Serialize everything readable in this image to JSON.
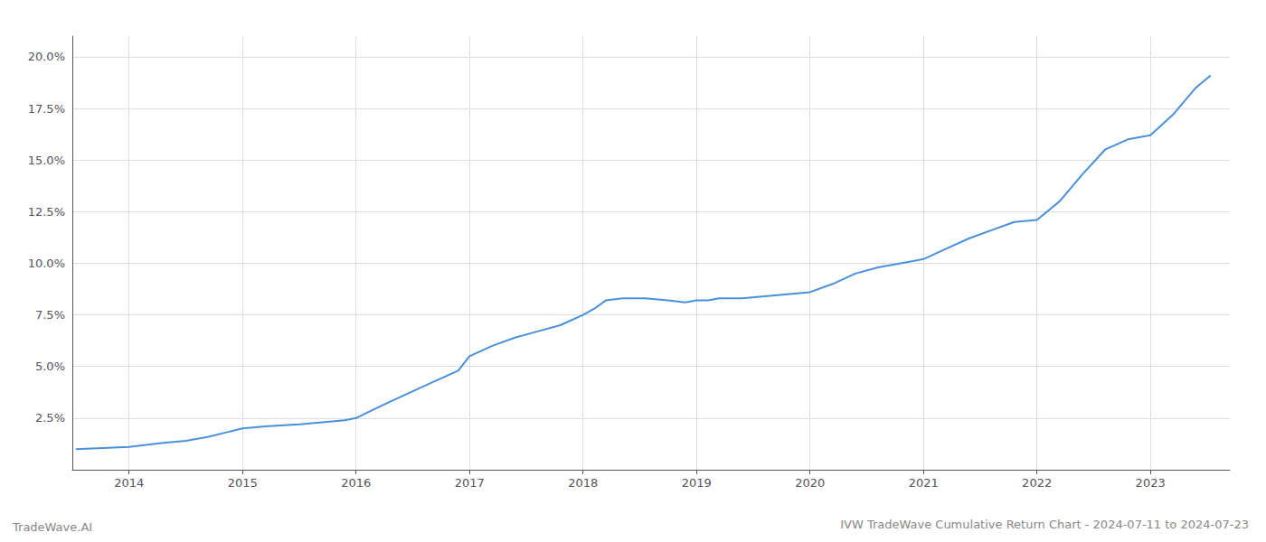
{
  "chart_data": {
    "type": "line",
    "title": "IVW TradeWave Cumulative Return Chart - 2024-07-11 to 2024-07-23",
    "annotations": [
      "TradeWave.AI"
    ],
    "color": "#4a90d9",
    "grid": true,
    "x": [
      2013.53,
      2014.0,
      2014.15,
      2014.3,
      2014.5,
      2014.7,
      2014.85,
      2015.0,
      2015.2,
      2015.5,
      2015.7,
      2015.9,
      2016.0,
      2016.15,
      2016.3,
      2016.5,
      2016.7,
      2016.9,
      2017.0,
      2017.2,
      2017.4,
      2017.6,
      2017.8,
      2018.0,
      2018.1,
      2018.2,
      2018.35,
      2018.55,
      2018.75,
      2018.9,
      2019.0,
      2019.1,
      2019.2,
      2019.4,
      2019.6,
      2019.8,
      2020.0,
      2020.2,
      2020.4,
      2020.6,
      2020.8,
      2021.0,
      2021.2,
      2021.4,
      2021.6,
      2021.8,
      2022.0,
      2022.2,
      2022.4,
      2022.6,
      2022.8,
      2023.0,
      2023.2,
      2023.4,
      2023.53
    ],
    "values": [
      0.01,
      0.011,
      0.012,
      0.013,
      0.014,
      0.016,
      0.018,
      0.02,
      0.021,
      0.022,
      0.023,
      0.024,
      0.025,
      0.029,
      0.033,
      0.038,
      0.043,
      0.048,
      0.055,
      0.06,
      0.064,
      0.067,
      0.07,
      0.075,
      0.078,
      0.082,
      0.083,
      0.083,
      0.082,
      0.081,
      0.082,
      0.082,
      0.083,
      0.083,
      0.084,
      0.085,
      0.086,
      0.09,
      0.095,
      0.098,
      0.1,
      0.102,
      0.107,
      0.112,
      0.116,
      0.12,
      0.121,
      0.13,
      0.143,
      0.155,
      0.16,
      0.162,
      0.172,
      0.185,
      0.191
    ],
    "xlim": [
      2013.5,
      2023.7
    ],
    "xticks": [
      2014,
      2015,
      2016,
      2017,
      2018,
      2019,
      2020,
      2021,
      2022,
      2023
    ],
    "ylim": [
      0.0,
      0.21
    ],
    "yticks": [
      {
        "value": 0.025,
        "label": "2.5%"
      },
      {
        "value": 0.05,
        "label": "5.0%"
      },
      {
        "value": 0.075,
        "label": "7.5%"
      },
      {
        "value": 0.1,
        "label": "10.0%"
      },
      {
        "value": 0.125,
        "label": "12.5%"
      },
      {
        "value": 0.15,
        "label": "15.0%"
      },
      {
        "value": 0.175,
        "label": "17.5%"
      },
      {
        "value": 0.2,
        "label": "20.0%"
      }
    ]
  }
}
